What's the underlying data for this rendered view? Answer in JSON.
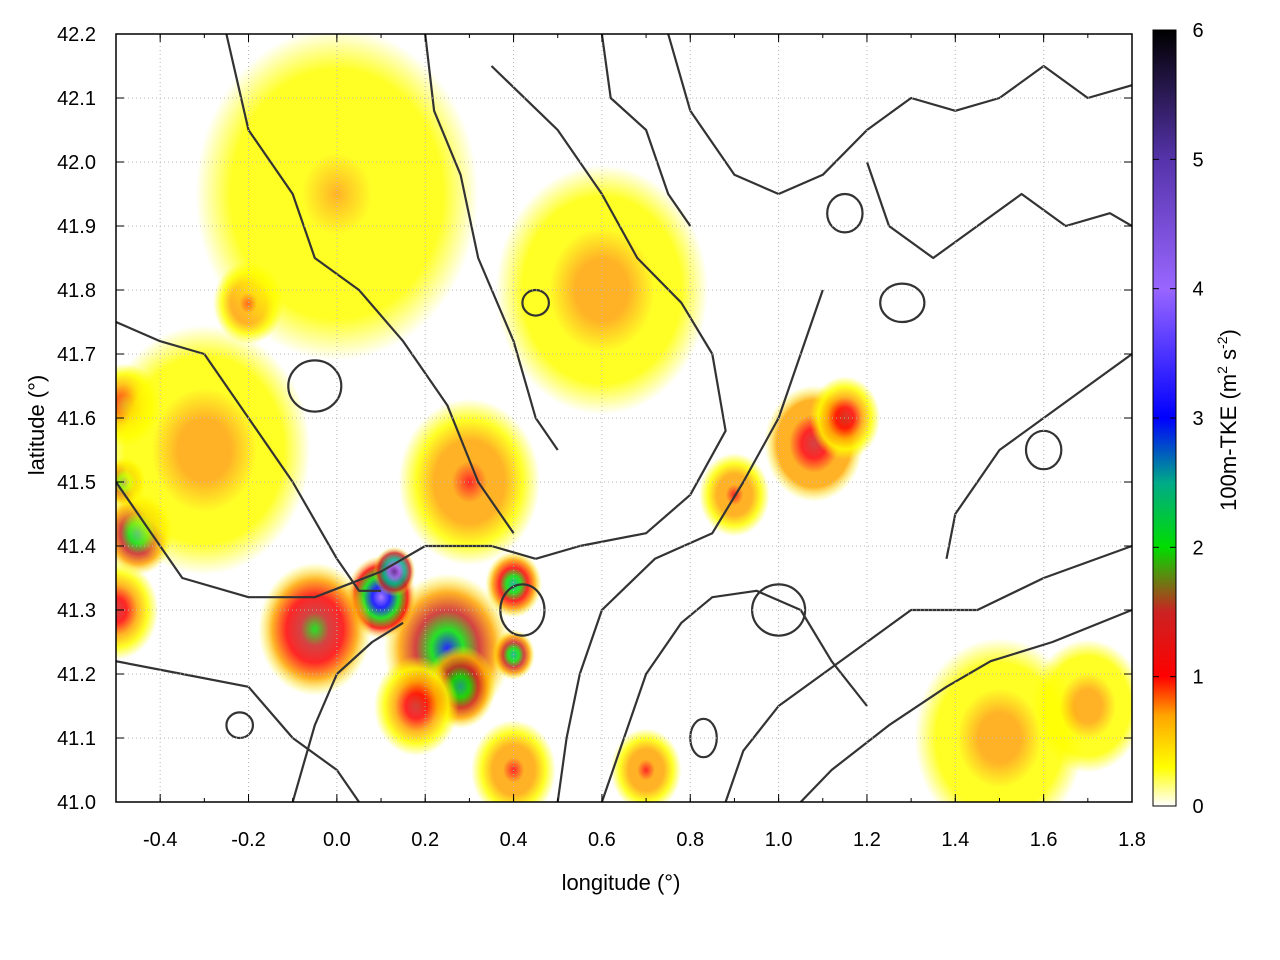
{
  "chart_data": {
    "type": "heatmap",
    "title": "",
    "xlabel": "longitude (°)",
    "ylabel": "latitude (°)",
    "xlim": [
      -0.5,
      1.8
    ],
    "ylim": [
      41.0,
      42.2
    ],
    "x_ticks": [
      -0.4,
      -0.2,
      0.0,
      0.2,
      0.4,
      0.6,
      0.8,
      1.0,
      1.2,
      1.4,
      1.6,
      1.8
    ],
    "x_tick_labels": [
      "-0.4",
      "-0.2",
      "0.0",
      "0.2",
      "0.4",
      "0.6",
      "0.8",
      "1.0",
      "1.2",
      "1.4",
      "1.6",
      "1.8"
    ],
    "y_ticks": [
      41.0,
      41.1,
      41.2,
      41.3,
      41.4,
      41.5,
      41.6,
      41.7,
      41.8,
      41.9,
      42.0,
      42.1,
      42.2
    ],
    "y_tick_labels": [
      "41.0",
      "41.1",
      "41.2",
      "41.3",
      "41.4",
      "41.5",
      "41.6",
      "41.7",
      "41.8",
      "41.9",
      "42.0",
      "42.1",
      "42.2"
    ],
    "grid": true,
    "colorbar": {
      "label_main": "100m-TKE (m",
      "label_sup1": "2",
      "label_mid": " s",
      "label_sup2": "-2",
      "label_end": ")",
      "range": [
        0,
        6
      ],
      "ticks": [
        0,
        1,
        2,
        3,
        4,
        5,
        6
      ],
      "tick_labels": [
        "0",
        "1",
        "2",
        "3",
        "4",
        "5",
        "6"
      ],
      "stops": [
        {
          "value": 0.0,
          "color": "#ffffff"
        },
        {
          "value": 0.3,
          "color": "#ffff00"
        },
        {
          "value": 0.7,
          "color": "#ffa500"
        },
        {
          "value": 1.0,
          "color": "#ff0000"
        },
        {
          "value": 1.5,
          "color": "#cc2222"
        },
        {
          "value": 2.0,
          "color": "#00dd00"
        },
        {
          "value": 2.5,
          "color": "#00aa88"
        },
        {
          "value": 3.0,
          "color": "#0000ff"
        },
        {
          "value": 4.0,
          "color": "#9966ff"
        },
        {
          "value": 5.0,
          "color": "#5533aa"
        },
        {
          "value": 6.0,
          "color": "#000000"
        }
      ]
    },
    "hotspots": [
      {
        "lon": 0.25,
        "lat": 41.24,
        "value": 2.6,
        "spread": 0.09
      },
      {
        "lon": 0.1,
        "lat": 41.32,
        "value": 3.8,
        "spread": 0.05
      },
      {
        "lon": 0.13,
        "lat": 41.36,
        "value": 4.8,
        "spread": 0.03
      },
      {
        "lon": 0.4,
        "lat": 41.34,
        "value": 2.2,
        "spread": 0.04
      },
      {
        "lon": -0.45,
        "lat": 41.42,
        "value": 2.4,
        "spread": 0.05
      },
      {
        "lon": -0.48,
        "lat": 41.5,
        "value": 2.6,
        "spread": 0.03
      },
      {
        "lon": -0.05,
        "lat": 41.27,
        "value": 1.6,
        "spread": 0.08
      },
      {
        "lon": 0.28,
        "lat": 41.18,
        "value": 2.3,
        "spread": 0.05
      },
      {
        "lon": 0.4,
        "lat": 41.23,
        "value": 2.5,
        "spread": 0.03
      },
      {
        "lon": 1.08,
        "lat": 41.56,
        "value": 1.3,
        "spread": 0.07
      },
      {
        "lon": 1.15,
        "lat": 41.6,
        "value": 1.2,
        "spread": 0.05
      },
      {
        "lon": 0.9,
        "lat": 41.48,
        "value": 1.0,
        "spread": 0.05
      },
      {
        "lon": -0.5,
        "lat": 41.3,
        "value": 1.2,
        "spread": 0.06
      },
      {
        "lon": -0.48,
        "lat": 41.62,
        "value": 1.1,
        "spread": 0.05
      },
      {
        "lon": -0.2,
        "lat": 41.78,
        "value": 1.0,
        "spread": 0.05
      },
      {
        "lon": 0.18,
        "lat": 41.15,
        "value": 1.1,
        "spread": 0.06
      },
      {
        "lon": 0.7,
        "lat": 41.05,
        "value": 0.9,
        "spread": 0.05
      },
      {
        "lon": 1.5,
        "lat": 41.1,
        "value": 0.5,
        "spread": 0.12
      },
      {
        "lon": 1.7,
        "lat": 41.15,
        "value": 0.6,
        "spread": 0.08
      },
      {
        "lon": 0.3,
        "lat": 41.5,
        "value": 0.8,
        "spread": 0.1
      },
      {
        "lon": -0.3,
        "lat": 41.55,
        "value": 0.6,
        "spread": 0.15
      },
      {
        "lon": 0.6,
        "lat": 41.8,
        "value": 0.5,
        "spread": 0.15
      },
      {
        "lon": 0.0,
        "lat": 41.95,
        "value": 0.4,
        "spread": 0.2
      },
      {
        "lon": 0.4,
        "lat": 41.05,
        "value": 1.0,
        "spread": 0.06
      }
    ],
    "contours": [
      [
        [
          -0.5,
          41.75
        ],
        [
          -0.4,
          41.72
        ],
        [
          -0.3,
          41.7
        ],
        [
          -0.2,
          41.6
        ],
        [
          -0.1,
          41.5
        ],
        [
          0.0,
          41.38
        ],
        [
          0.05,
          41.33
        ],
        [
          0.1,
          41.33
        ]
      ],
      [
        [
          -0.5,
          41.5
        ],
        [
          -0.42,
          41.42
        ],
        [
          -0.35,
          41.35
        ],
        [
          -0.2,
          41.32
        ],
        [
          -0.05,
          41.32
        ],
        [
          0.1,
          41.36
        ],
        [
          0.2,
          41.4
        ],
        [
          0.35,
          41.4
        ],
        [
          0.45,
          41.38
        ]
      ],
      [
        [
          -0.5,
          41.22
        ],
        [
          -0.35,
          41.2
        ],
        [
          -0.2,
          41.18
        ],
        [
          -0.1,
          41.1
        ],
        [
          0.0,
          41.05
        ],
        [
          0.05,
          41.0
        ]
      ],
      [
        [
          -0.25,
          42.2
        ],
        [
          -0.2,
          42.05
        ],
        [
          -0.1,
          41.95
        ],
        [
          -0.05,
          41.85
        ],
        [
          0.05,
          41.8
        ],
        [
          0.15,
          41.72
        ],
        [
          0.25,
          41.62
        ],
        [
          0.32,
          41.5
        ],
        [
          0.4,
          41.42
        ]
      ],
      [
        [
          0.2,
          42.2
        ],
        [
          0.22,
          42.08
        ],
        [
          0.28,
          41.98
        ],
        [
          0.32,
          41.85
        ],
        [
          0.4,
          41.72
        ],
        [
          0.45,
          41.6
        ],
        [
          0.5,
          41.55
        ]
      ],
      [
        [
          0.35,
          42.15
        ],
        [
          0.5,
          42.05
        ],
        [
          0.6,
          41.95
        ],
        [
          0.68,
          41.85
        ],
        [
          0.78,
          41.78
        ],
        [
          0.85,
          41.7
        ],
        [
          0.88,
          41.58
        ],
        [
          0.8,
          41.48
        ],
        [
          0.7,
          41.42
        ],
        [
          0.55,
          41.4
        ],
        [
          0.45,
          41.38
        ]
      ],
      [
        [
          1.1,
          41.8
        ],
        [
          1.05,
          41.7
        ],
        [
          1.0,
          41.6
        ],
        [
          0.92,
          41.5
        ],
        [
          0.85,
          41.42
        ],
        [
          0.72,
          41.38
        ],
        [
          0.6,
          41.3
        ],
        [
          0.55,
          41.2
        ],
        [
          0.52,
          41.1
        ],
        [
          0.5,
          41.0
        ]
      ],
      [
        [
          1.8,
          41.4
        ],
        [
          1.6,
          41.35
        ],
        [
          1.45,
          41.3
        ],
        [
          1.3,
          41.3
        ],
        [
          1.2,
          41.25
        ],
        [
          1.1,
          41.2
        ],
        [
          1.0,
          41.15
        ],
        [
          0.92,
          41.08
        ],
        [
          0.88,
          41.0
        ]
      ],
      [
        [
          1.8,
          41.3
        ],
        [
          1.62,
          41.25
        ],
        [
          1.48,
          41.22
        ],
        [
          1.38,
          41.18
        ],
        [
          1.25,
          41.12
        ],
        [
          1.12,
          41.05
        ],
        [
          1.05,
          41.0
        ]
      ],
      [
        [
          0.75,
          42.2
        ],
        [
          0.8,
          42.08
        ],
        [
          0.9,
          41.98
        ],
        [
          1.0,
          41.95
        ],
        [
          1.1,
          41.98
        ],
        [
          1.2,
          42.05
        ],
        [
          1.3,
          42.1
        ],
        [
          1.4,
          42.08
        ],
        [
          1.5,
          42.1
        ],
        [
          1.6,
          42.15
        ],
        [
          1.7,
          42.1
        ],
        [
          1.8,
          42.12
        ]
      ],
      [
        [
          0.6,
          42.2
        ],
        [
          0.62,
          42.1
        ],
        [
          0.7,
          42.05
        ],
        [
          0.75,
          41.95
        ],
        [
          0.8,
          41.9
        ]
      ],
      [
        [
          1.2,
          42.0
        ],
        [
          1.25,
          41.9
        ],
        [
          1.35,
          41.85
        ],
        [
          1.45,
          41.9
        ],
        [
          1.55,
          41.95
        ],
        [
          1.65,
          41.9
        ],
        [
          1.75,
          41.92
        ],
        [
          1.8,
          41.9
        ]
      ],
      [
        [
          1.8,
          41.7
        ],
        [
          1.7,
          41.65
        ],
        [
          1.6,
          41.6
        ],
        [
          1.5,
          41.55
        ],
        [
          1.45,
          41.5
        ],
        [
          1.4,
          41.45
        ],
        [
          1.38,
          41.38
        ]
      ],
      [
        [
          -0.1,
          41.0
        ],
        [
          -0.05,
          41.12
        ],
        [
          0.0,
          41.2
        ],
        [
          0.08,
          41.25
        ],
        [
          0.15,
          41.28
        ]
      ],
      [
        [
          0.6,
          41.0
        ],
        [
          0.65,
          41.1
        ],
        [
          0.7,
          41.2
        ],
        [
          0.78,
          41.28
        ],
        [
          0.85,
          41.32
        ],
        [
          0.95,
          41.33
        ],
        [
          1.05,
          41.3
        ],
        [
          1.12,
          41.22
        ],
        [
          1.2,
          41.15
        ]
      ]
    ],
    "contour_loops": [
      {
        "lon": 1.0,
        "lat": 41.3,
        "rx": 0.06,
        "ry": 0.04
      },
      {
        "lon": -0.22,
        "lat": 41.12,
        "rx": 0.03,
        "ry": 0.02
      },
      {
        "lon": 0.83,
        "lat": 41.1,
        "rx": 0.03,
        "ry": 0.03
      },
      {
        "lon": 1.28,
        "lat": 41.78,
        "rx": 0.05,
        "ry": 0.03
      },
      {
        "lon": 1.6,
        "lat": 41.55,
        "rx": 0.04,
        "ry": 0.03
      },
      {
        "lon": 0.45,
        "lat": 41.78,
        "rx": 0.03,
        "ry": 0.02
      },
      {
        "lon": 1.15,
        "lat": 41.92,
        "rx": 0.04,
        "ry": 0.03
      },
      {
        "lon": 0.42,
        "lat": 41.3,
        "rx": 0.05,
        "ry": 0.04
      },
      {
        "lon": -0.05,
        "lat": 41.65,
        "rx": 0.06,
        "ry": 0.04
      }
    ]
  }
}
